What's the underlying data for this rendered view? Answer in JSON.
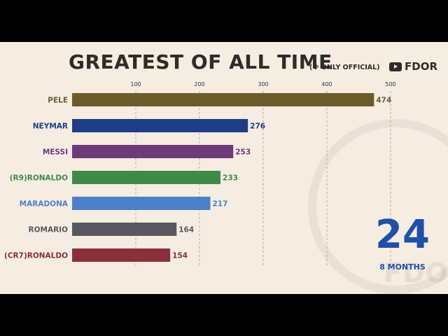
{
  "header": {
    "title": "GREATEST OF ALL TIME",
    "subtitle": "(※ ONLY OFFICIAL)",
    "brand": "FDOR",
    "brand_icon": "youtube-icon"
  },
  "watermark": "FDOR",
  "counter": {
    "value": "24",
    "label": "8 MONTHS"
  },
  "chart_data": {
    "type": "bar",
    "orientation": "horizontal",
    "categories": [
      "PELE",
      "NEYMAR",
      "MESSI",
      "(R9)RONALDO",
      "MARADONA",
      "ROMARIO",
      "(CR7)RONALDO"
    ],
    "values": [
      474,
      276,
      253,
      233,
      217,
      164,
      154
    ],
    "colors": [
      "#6b5c2a",
      "#1e3d85",
      "#6e3a78",
      "#3f8a48",
      "#4c80c8",
      "#58585e",
      "#8a2f3a"
    ],
    "label_colors": [
      "#6b5c2a",
      "#1e3d85",
      "#6e3a78",
      "#3f8a48",
      "#4c80c8",
      "#58585e",
      "#8a2f3a"
    ],
    "x_ticks": [
      100,
      200,
      300,
      400,
      500
    ],
    "xlim": [
      0,
      500
    ],
    "grid": true,
    "title": "GREATEST OF ALL TIME"
  }
}
